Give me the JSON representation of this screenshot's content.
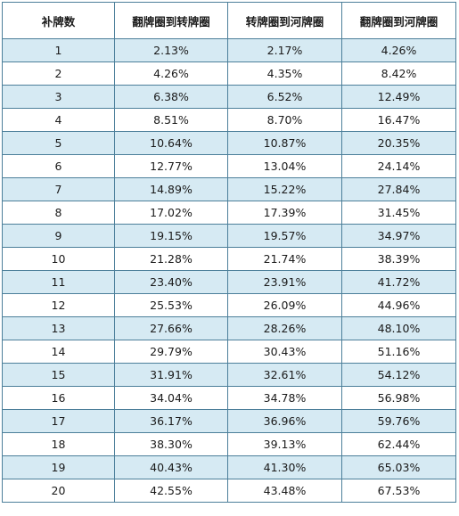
{
  "table": {
    "headers": [
      "补牌数",
      "翻牌圈到转牌圈",
      "转牌圈到河牌圈",
      "翻牌圈到河牌圈"
    ],
    "rows": [
      [
        "1",
        "2.13%",
        "2.17%",
        "4.26%"
      ],
      [
        "2",
        "4.26%",
        "4.35%",
        "8.42%"
      ],
      [
        "3",
        "6.38%",
        "6.52%",
        "12.49%"
      ],
      [
        "4",
        "8.51%",
        "8.70%",
        "16.47%"
      ],
      [
        "5",
        "10.64%",
        "10.87%",
        "20.35%"
      ],
      [
        "6",
        "12.77%",
        "13.04%",
        "24.14%"
      ],
      [
        "7",
        "14.89%",
        "15.22%",
        "27.84%"
      ],
      [
        "8",
        "17.02%",
        "17.39%",
        "31.45%"
      ],
      [
        "9",
        "19.15%",
        "19.57%",
        "34.97%"
      ],
      [
        "10",
        "21.28%",
        "21.74%",
        "38.39%"
      ],
      [
        "11",
        "23.40%",
        "23.91%",
        "41.72%"
      ],
      [
        "12",
        "25.53%",
        "26.09%",
        "44.96%"
      ],
      [
        "13",
        "27.66%",
        "28.26%",
        "48.10%"
      ],
      [
        "14",
        "29.79%",
        "30.43%",
        "51.16%"
      ],
      [
        "15",
        "31.91%",
        "32.61%",
        "54.12%"
      ],
      [
        "16",
        "34.04%",
        "34.78%",
        "56.98%"
      ],
      [
        "17",
        "36.17%",
        "36.96%",
        "59.76%"
      ],
      [
        "18",
        "38.30%",
        "39.13%",
        "62.44%"
      ],
      [
        "19",
        "40.43%",
        "41.30%",
        "65.03%"
      ],
      [
        "20",
        "42.55%",
        "43.48%",
        "67.53%"
      ]
    ]
  },
  "colors": {
    "border": "#4c7f9a",
    "row_stripe": "#d6eaf3",
    "row_plain": "#ffffff",
    "text": "#1a1a1a"
  }
}
